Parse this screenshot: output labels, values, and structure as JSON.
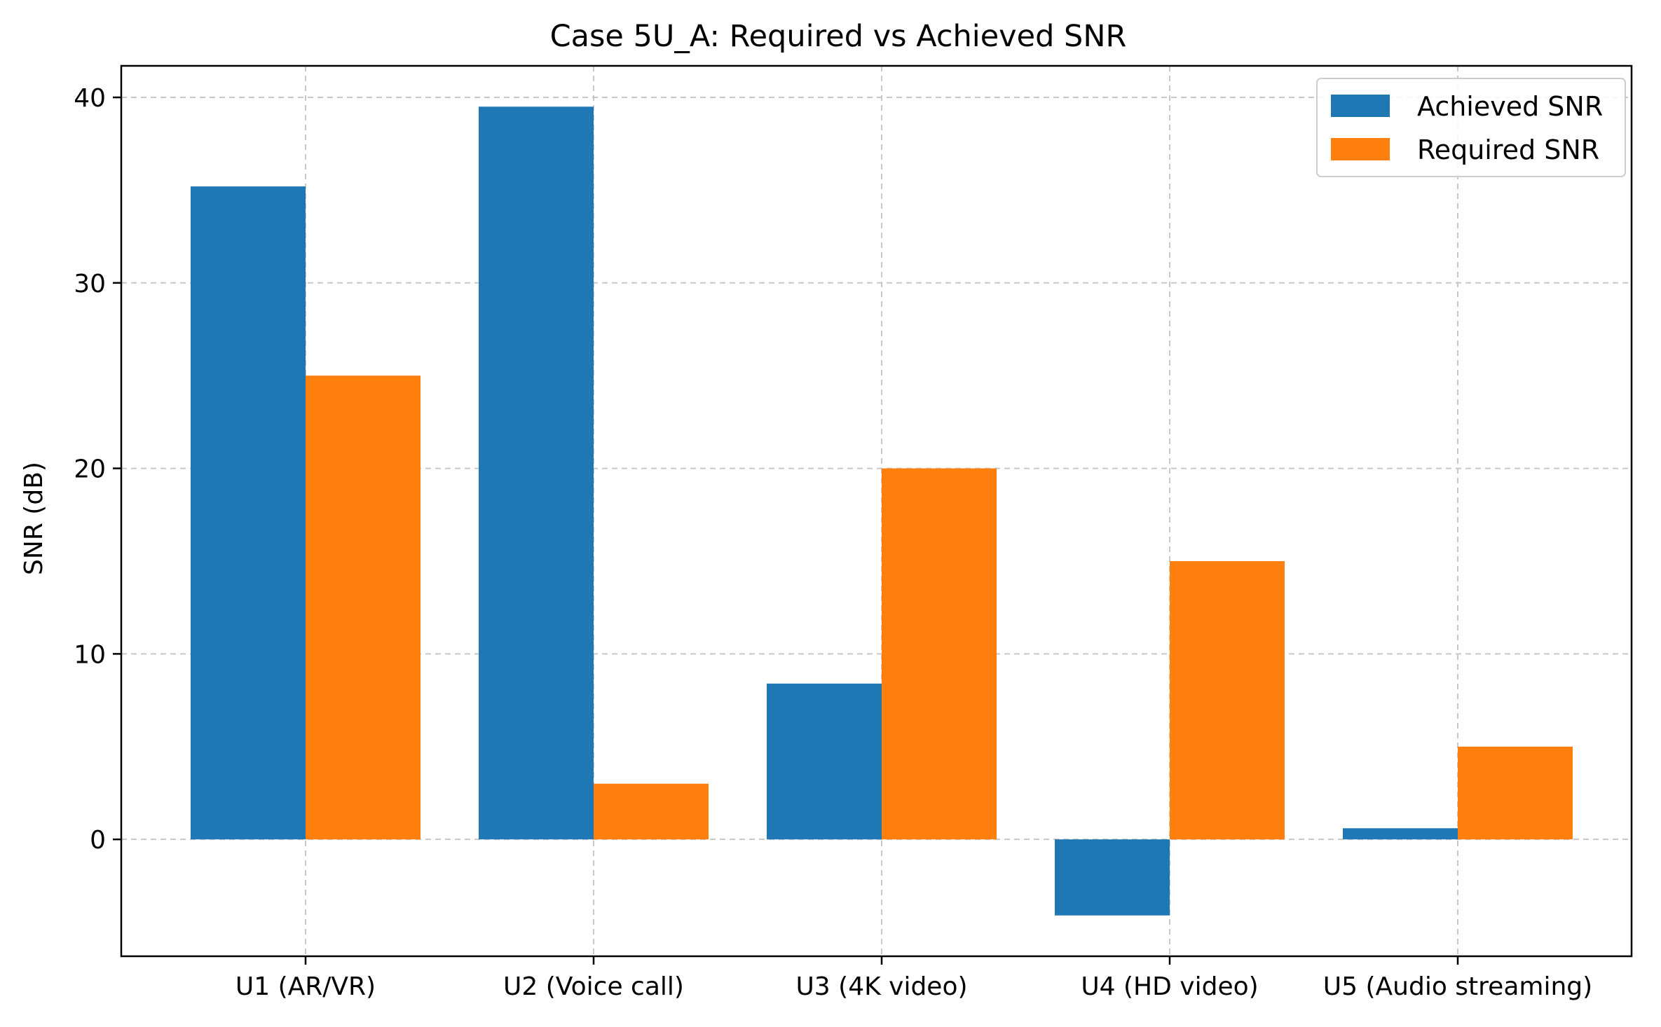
{
  "chart_data": {
    "type": "bar",
    "title": "Case 5U_A: Required vs Achieved SNR",
    "xlabel": "",
    "ylabel": "SNR (dB)",
    "categories": [
      "U1 (AR/VR)",
      "U2 (Voice call)",
      "U3 (4K video)",
      "U4 (HD video)",
      "U5 (Audio streaming)"
    ],
    "series": [
      {
        "name": "Achieved SNR",
        "color": "#1f77b4",
        "values": [
          35.2,
          39.5,
          8.4,
          -4.1,
          0.6
        ]
      },
      {
        "name": "Required SNR",
        "color": "#ff7f0e",
        "values": [
          25,
          3,
          20,
          15,
          5
        ]
      }
    ],
    "ylim": [
      -6.3,
      41.7
    ],
    "yticks": [
      0,
      10,
      20,
      30,
      40
    ],
    "grid": true,
    "legend_position": "top-right"
  }
}
